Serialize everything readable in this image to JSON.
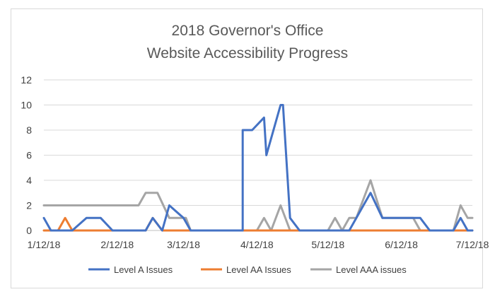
{
  "chart_data": {
    "type": "line",
    "title_lines": [
      "2018 Governor's Office",
      "Website Accessibility Progress"
    ],
    "xlabel": "",
    "ylabel": "",
    "ylim": [
      0,
      12
    ],
    "yticks": [
      0,
      2,
      4,
      6,
      8,
      10,
      12
    ],
    "x_tick_labels": [
      "1/12/18",
      "2/12/18",
      "3/12/18",
      "4/12/18",
      "5/12/18",
      "6/12/18",
      "7/12/18"
    ],
    "x_tick_dates": [
      "2018-01-12",
      "2018-02-12",
      "2018-03-12",
      "2018-04-12",
      "2018-05-12",
      "2018-06-12",
      "2018-07-12"
    ],
    "xlim": [
      "2018-01-12",
      "2018-07-12"
    ],
    "grid": "horizontal",
    "legend_position": "bottom",
    "series": [
      {
        "name": "Level A Issues",
        "color": "#4472c4",
        "points": [
          [
            "2018-01-12",
            1
          ],
          [
            "2018-01-15",
            0
          ],
          [
            "2018-01-24",
            0
          ],
          [
            "2018-01-30",
            1
          ],
          [
            "2018-02-05",
            1
          ],
          [
            "2018-02-10",
            0
          ],
          [
            "2018-02-24",
            0
          ],
          [
            "2018-02-27",
            1
          ],
          [
            "2018-03-03",
            0
          ],
          [
            "2018-03-06",
            2
          ],
          [
            "2018-03-12",
            1
          ],
          [
            "2018-03-15",
            0
          ],
          [
            "2018-04-06",
            0
          ],
          [
            "2018-04-06",
            8
          ],
          [
            "2018-04-10",
            8
          ],
          [
            "2018-04-15",
            9
          ],
          [
            "2018-04-16",
            6
          ],
          [
            "2018-04-22",
            10
          ],
          [
            "2018-04-23",
            10
          ],
          [
            "2018-04-26",
            1
          ],
          [
            "2018-04-30",
            0
          ],
          [
            "2018-05-21",
            0
          ],
          [
            "2018-05-30",
            3
          ],
          [
            "2018-06-04",
            1
          ],
          [
            "2018-06-20",
            1
          ],
          [
            "2018-06-24",
            0
          ],
          [
            "2018-07-04",
            0
          ],
          [
            "2018-07-07",
            1
          ],
          [
            "2018-07-10",
            0
          ],
          [
            "2018-07-12",
            0
          ]
        ]
      },
      {
        "name": "Level AA Issues",
        "color": "#ed7d31",
        "points": [
          [
            "2018-01-12",
            0
          ],
          [
            "2018-01-18",
            0
          ],
          [
            "2018-01-21",
            1
          ],
          [
            "2018-01-24",
            0
          ],
          [
            "2018-02-24",
            0
          ],
          [
            "2018-02-27",
            1
          ],
          [
            "2018-03-03",
            0
          ],
          [
            "2018-07-12",
            0
          ]
        ]
      },
      {
        "name": "Level AAA issues",
        "color": "#a5a5a5",
        "points": [
          [
            "2018-01-12",
            2
          ],
          [
            "2018-02-21",
            2
          ],
          [
            "2018-02-24",
            3
          ],
          [
            "2018-03-01",
            3
          ],
          [
            "2018-03-06",
            1
          ],
          [
            "2018-03-13",
            1
          ],
          [
            "2018-03-15",
            0
          ],
          [
            "2018-04-06",
            0
          ],
          [
            "2018-04-12",
            0
          ],
          [
            "2018-04-15",
            1
          ],
          [
            "2018-04-18",
            0
          ],
          [
            "2018-04-22",
            2
          ],
          [
            "2018-04-26",
            0
          ],
          [
            "2018-05-12",
            0
          ],
          [
            "2018-05-15",
            1
          ],
          [
            "2018-05-18",
            0
          ],
          [
            "2018-05-21",
            1
          ],
          [
            "2018-05-24",
            1
          ],
          [
            "2018-05-30",
            4
          ],
          [
            "2018-06-04",
            1
          ],
          [
            "2018-06-17",
            1
          ],
          [
            "2018-06-20",
            0
          ],
          [
            "2018-07-04",
            0
          ],
          [
            "2018-07-07",
            2
          ],
          [
            "2018-07-10",
            1
          ],
          [
            "2018-07-12",
            1
          ]
        ]
      }
    ]
  }
}
